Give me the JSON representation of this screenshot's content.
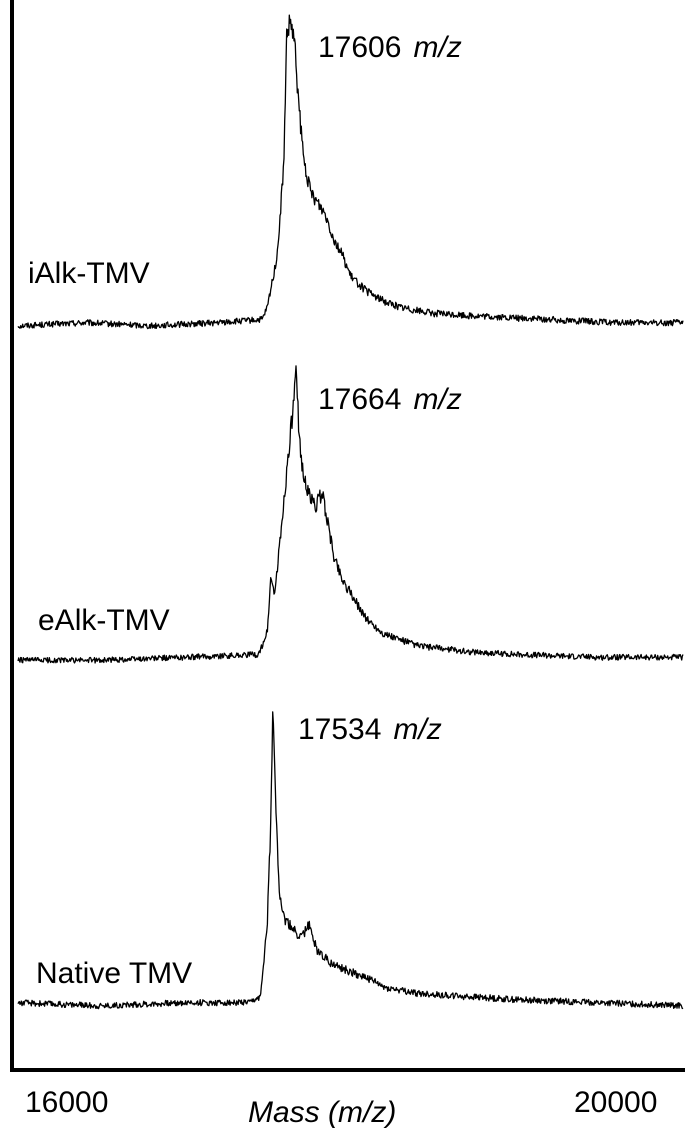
{
  "chart_data": {
    "type": "line",
    "title": "",
    "xlabel": "Mass (m/z)",
    "ylabel": "",
    "xlim": [
      16000,
      20000
    ],
    "xticks": [
      "16000",
      "20000"
    ],
    "grid": false,
    "legend": "none",
    "line_color": "#000000",
    "series": [
      {
        "name": "iAlk-TMV",
        "peak_value": "17606",
        "peak_unit": "m/z",
        "points": [
          [
            16000,
            0.02
          ],
          [
            16400,
            0.03
          ],
          [
            16800,
            0.02
          ],
          [
            17200,
            0.03
          ],
          [
            17470,
            0.04
          ],
          [
            17500,
            0.08
          ],
          [
            17560,
            0.25
          ],
          [
            17600,
            0.55
          ],
          [
            17615,
            0.95
          ],
          [
            17640,
            1.0
          ],
          [
            17665,
            0.92
          ],
          [
            17690,
            0.72
          ],
          [
            17720,
            0.55
          ],
          [
            17760,
            0.45
          ],
          [
            17800,
            0.42
          ],
          [
            17850,
            0.38
          ],
          [
            17900,
            0.3
          ],
          [
            17950,
            0.25
          ],
          [
            18000,
            0.18
          ],
          [
            18100,
            0.13
          ],
          [
            18200,
            0.1
          ],
          [
            18300,
            0.08
          ],
          [
            18500,
            0.06
          ],
          [
            18800,
            0.05
          ],
          [
            19200,
            0.04
          ],
          [
            19600,
            0.03
          ],
          [
            20000,
            0.03
          ]
        ]
      },
      {
        "name": "eAlk-TMV",
        "peak_value": "17664",
        "peak_unit": "m/z",
        "points": [
          [
            16000,
            0.02
          ],
          [
            16500,
            0.02
          ],
          [
            17000,
            0.03
          ],
          [
            17450,
            0.04
          ],
          [
            17500,
            0.12
          ],
          [
            17520,
            0.3
          ],
          [
            17545,
            0.25
          ],
          [
            17580,
            0.45
          ],
          [
            17630,
            0.75
          ],
          [
            17660,
            0.92
          ],
          [
            17672,
            1.0
          ],
          [
            17700,
            0.72
          ],
          [
            17740,
            0.6
          ],
          [
            17790,
            0.55
          ],
          [
            17830,
            0.6
          ],
          [
            17860,
            0.5
          ],
          [
            17900,
            0.38
          ],
          [
            17950,
            0.3
          ],
          [
            18000,
            0.25
          ],
          [
            18100,
            0.16
          ],
          [
            18200,
            0.11
          ],
          [
            18400,
            0.07
          ],
          [
            18700,
            0.05
          ],
          [
            19000,
            0.04
          ],
          [
            19500,
            0.03
          ],
          [
            20000,
            0.03
          ]
        ]
      },
      {
        "name": "Native TMV",
        "peak_value": "17534",
        "peak_unit": "m/z",
        "points": [
          [
            16000,
            0.03
          ],
          [
            16500,
            0.02
          ],
          [
            17000,
            0.03
          ],
          [
            17400,
            0.03
          ],
          [
            17460,
            0.05
          ],
          [
            17500,
            0.3
          ],
          [
            17520,
            0.6
          ],
          [
            17534,
            1.0
          ],
          [
            17550,
            0.7
          ],
          [
            17570,
            0.4
          ],
          [
            17600,
            0.3
          ],
          [
            17650,
            0.27
          ],
          [
            17700,
            0.24
          ],
          [
            17750,
            0.28
          ],
          [
            17800,
            0.2
          ],
          [
            17900,
            0.15
          ],
          [
            18000,
            0.13
          ],
          [
            18100,
            0.11
          ],
          [
            18200,
            0.08
          ],
          [
            18400,
            0.06
          ],
          [
            18700,
            0.05
          ],
          [
            19000,
            0.04
          ],
          [
            19500,
            0.03
          ],
          [
            20000,
            0.02
          ]
        ]
      }
    ]
  }
}
